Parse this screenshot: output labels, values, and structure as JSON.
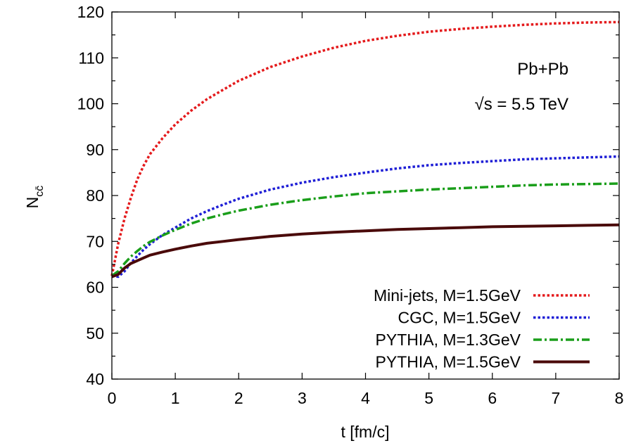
{
  "chart_data": {
    "type": "line",
    "xlabel": "t [fm/c]",
    "ylabel": "N",
    "ylabel_subscript": "cc̄",
    "xlim": [
      0,
      8
    ],
    "ylim": [
      40,
      120
    ],
    "x_ticks": [
      0,
      1,
      2,
      3,
      4,
      5,
      6,
      7,
      8
    ],
    "y_ticks": [
      40,
      50,
      60,
      70,
      80,
      90,
      100,
      110,
      120
    ],
    "grid": false,
    "legend_position": "bottom-right",
    "annotations": [
      "Pb+Pb",
      "√s = 5.5 TeV"
    ],
    "series": [
      {
        "name": "Mini-jets, M=1.5GeV",
        "color": "#e41a1c",
        "style": "dotted",
        "x": [
          0,
          0.1,
          0.2,
          0.3,
          0.4,
          0.5,
          0.6,
          0.8,
          1.0,
          1.25,
          1.5,
          1.75,
          2.0,
          2.5,
          3.0,
          3.5,
          4.0,
          4.5,
          5.0,
          5.5,
          6.0,
          6.5,
          7.0,
          7.5,
          8.0
        ],
        "y": [
          62.5,
          69.5,
          75.0,
          79.5,
          83.5,
          86.5,
          89.0,
          92.5,
          95.5,
          98.5,
          101.0,
          103.0,
          105.0,
          108.0,
          110.3,
          112.2,
          113.7,
          114.8,
          115.7,
          116.3,
          116.8,
          117.2,
          117.5,
          117.7,
          117.8
        ]
      },
      {
        "name": "CGC, M=1.5GeV",
        "color": "#1f1fd6",
        "style": "dotted",
        "x": [
          0,
          0.1,
          0.2,
          0.3,
          0.4,
          0.5,
          0.6,
          0.8,
          1.0,
          1.25,
          1.5,
          1.75,
          2.0,
          2.5,
          3.0,
          3.5,
          4.0,
          4.5,
          5.0,
          5.5,
          6.0,
          6.5,
          7.0,
          7.5,
          8.0
        ],
        "y": [
          62.5,
          62.3,
          63.5,
          65.3,
          66.8,
          68.2,
          69.4,
          71.4,
          73.0,
          75.0,
          76.6,
          78.0,
          79.3,
          81.3,
          82.8,
          84.0,
          85.0,
          85.9,
          86.6,
          87.1,
          87.5,
          87.9,
          88.1,
          88.3,
          88.5
        ]
      },
      {
        "name": "PYTHIA, M=1.3GeV",
        "color": "#1a9e1a",
        "style": "dashdot",
        "x": [
          0,
          0.1,
          0.2,
          0.3,
          0.4,
          0.5,
          0.6,
          0.8,
          1.0,
          1.25,
          1.5,
          1.75,
          2.0,
          2.5,
          3.0,
          3.5,
          4.0,
          4.5,
          5.0,
          5.5,
          6.0,
          6.5,
          7.0,
          7.5,
          8.0
        ],
        "y": [
          62.5,
          63.5,
          65.2,
          66.7,
          67.9,
          69.0,
          69.9,
          71.3,
          72.5,
          73.9,
          75.0,
          75.9,
          76.7,
          78.0,
          79.0,
          79.8,
          80.5,
          80.9,
          81.3,
          81.6,
          81.9,
          82.2,
          82.4,
          82.5,
          82.6
        ]
      },
      {
        "name": "PYTHIA, M=1.5GeV",
        "color": "#4a0a0a",
        "style": "solid",
        "x": [
          0,
          0.1,
          0.2,
          0.3,
          0.4,
          0.5,
          0.6,
          0.8,
          1.0,
          1.25,
          1.5,
          1.75,
          2.0,
          2.5,
          3.0,
          3.5,
          4.0,
          4.5,
          5.0,
          5.5,
          6.0,
          6.5,
          7.0,
          7.5,
          8.0
        ],
        "y": [
          62.3,
          62.8,
          64.2,
          65.2,
          65.8,
          66.4,
          67.0,
          67.7,
          68.3,
          69.0,
          69.6,
          70.0,
          70.4,
          71.1,
          71.6,
          72.0,
          72.3,
          72.6,
          72.8,
          73.0,
          73.2,
          73.3,
          73.4,
          73.5,
          73.6
        ]
      }
    ]
  }
}
